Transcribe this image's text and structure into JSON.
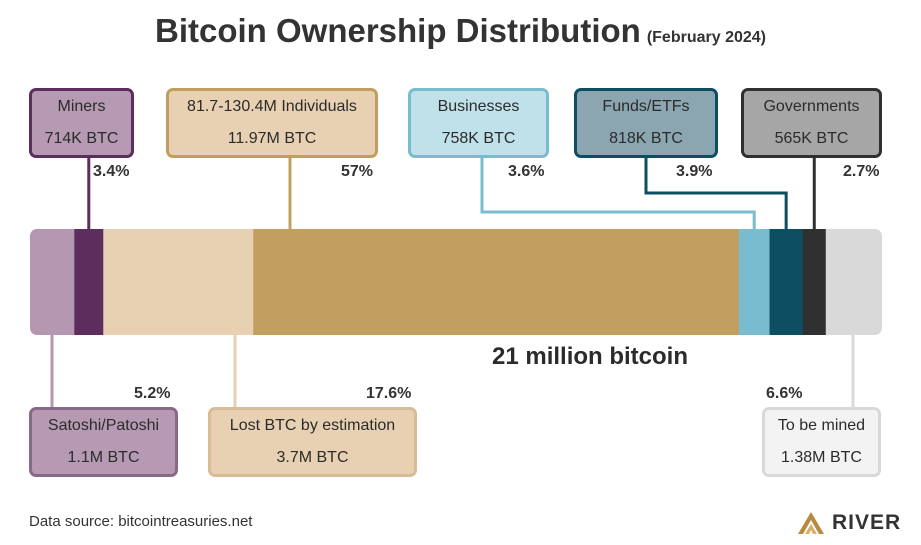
{
  "title": "Bitcoin Ownership Distribution",
  "subtitle": "(February 2024)",
  "bar_caption": "21 million bitcoin",
  "source": "Data source: bitcointreasuries.net",
  "brand": "RIVER",
  "chart_data": {
    "type": "bar",
    "orientation": "horizontal-stacked",
    "total": "21 million bitcoin",
    "segments": [
      {
        "id": "satoshi",
        "name": "Satoshi/Patoshi",
        "value": "1.1M BTC",
        "percent": 5.2,
        "percent_label": "5.2%",
        "color": "#b597b2"
      },
      {
        "id": "miners",
        "name": "Miners",
        "value": "714K BTC",
        "percent": 3.4,
        "percent_label": "3.4%",
        "color": "#5d2d5e"
      },
      {
        "id": "lost",
        "name": "Lost BTC by estimation",
        "value": "3.7M BTC",
        "percent": 17.6,
        "percent_label": "17.6%",
        "color": "#e7d1b2"
      },
      {
        "id": "individuals",
        "name": "81.7-130.4M Individuals",
        "value": "11.97M BTC",
        "percent": 57,
        "percent_label": "57%",
        "color": "#c29f60"
      },
      {
        "id": "businesses",
        "name": "Businesses",
        "value": "758K BTC",
        "percent": 3.6,
        "percent_label": "3.6%",
        "color": "#79bccf"
      },
      {
        "id": "funds",
        "name": "Funds/ETFs",
        "value": "818K BTC",
        "percent": 3.9,
        "percent_label": "3.9%",
        "color": "#0e4e63"
      },
      {
        "id": "governments",
        "name": "Governments",
        "value": "565K BTC",
        "percent": 2.7,
        "percent_label": "2.7%",
        "color": "#303030"
      },
      {
        "id": "mined",
        "name": "To be mined",
        "value": "1.38M BTC",
        "percent": 6.6,
        "percent_label": "6.6%",
        "color": "#d9d9d9"
      }
    ]
  },
  "boxes": [
    {
      "id": "miners",
      "name": "Miners",
      "value": "714K BTC",
      "fill": "#b69ab3",
      "border": "#5d2d5e"
    },
    {
      "id": "individuals",
      "name": "81.7-130.4M Individuals",
      "value": "11.97M BTC",
      "fill": "#e8d1b3",
      "border": "#c29f60"
    },
    {
      "id": "businesses",
      "name": "Businesses",
      "value": "758K BTC",
      "fill": "#c1e1ea",
      "border": "#79bccf"
    },
    {
      "id": "funds",
      "name": "Funds/ETFs",
      "value": "818K BTC",
      "fill": "#8ba5b1",
      "border": "#0e4e63"
    },
    {
      "id": "governments",
      "name": "Governments",
      "value": "565K BTC",
      "fill": "#a6a6a6",
      "border": "#303030"
    },
    {
      "id": "satoshi",
      "name": "Satoshi/Patoshi",
      "value": "1.1M BTC",
      "fill": "#b69ab3",
      "border": "#876a88"
    },
    {
      "id": "lost",
      "name": "Lost BTC by estimation",
      "value": "3.7M BTC",
      "fill": "#e8d1b3",
      "border": "#d7bc95"
    },
    {
      "id": "mined",
      "name": "To be mined",
      "value": "1.38M BTC",
      "fill": "#f3f3f3",
      "border": "#d9d9d9"
    }
  ]
}
